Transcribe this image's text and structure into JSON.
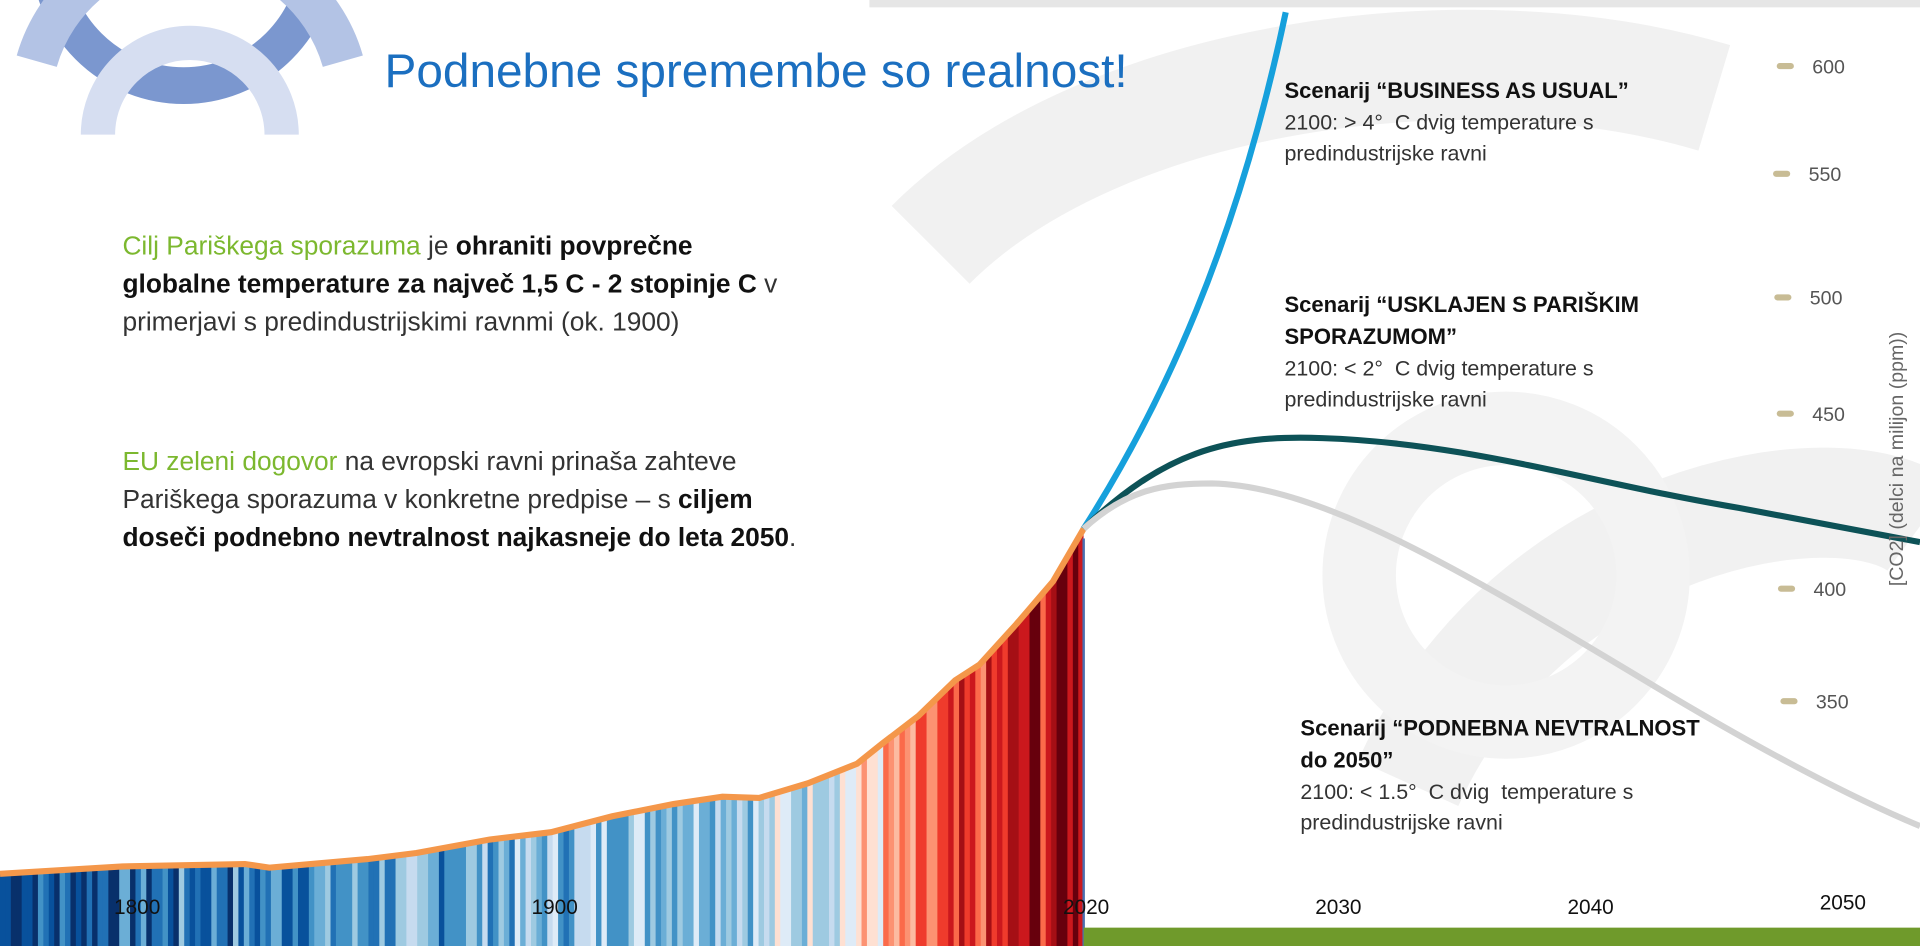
{
  "title": "Podnebne spremembe so realnost!",
  "paragraphs": [
    [
      [
        {
          "text": "Cilj Pariškega sporazuma",
          "style": "green"
        },
        {
          "text": " je ",
          "style": "normal"
        },
        {
          "text": "ohraniti povprečne",
          "style": "bold"
        }
      ],
      [
        {
          "text": "globalne temperature za največ 1,5 C - 2 stopinje C",
          "style": "bold"
        },
        {
          "text": " v",
          "style": "normal"
        }
      ],
      [
        {
          "text": "primerjavi s predindustrijskimi ravnmi (ok. 1900)",
          "style": "normal"
        }
      ]
    ],
    [
      [
        {
          "text": "EU zeleni dogovor",
          "style": "green"
        },
        {
          "text": " na evropski ravni prinaša zahteve",
          "style": "normal"
        }
      ],
      [
        {
          "text": "Pariškega sporazuma v konkretne predpise – s ",
          "style": "normal"
        },
        {
          "text": "ciljem",
          "style": "bold"
        }
      ],
      [
        {
          "text": "doseči podnebno nevtralnost najkasneje do leta 2050",
          "style": "bold"
        },
        {
          "text": ".",
          "style": "normal"
        }
      ]
    ]
  ],
  "scenarios": [
    {
      "title_lines": [
        "Scenarij “BUSINESS AS USUAL”"
      ],
      "detail_lines": [
        "2100: > 4°  C dvig temperature s",
        "predindustrijske ravni"
      ]
    },
    {
      "title_lines": [
        "Scenarij “USKLAJEN  S PARIŠKIM",
        "SPORAZUMOM”"
      ],
      "detail_lines": [
        "2100: < 2°  C dvig temperature s",
        "predindustrijske ravni"
      ]
    },
    {
      "title_lines": [
        "Scenarij “PODNEBNA NEVTRALNOST",
        "do 2050”"
      ],
      "detail_lines": [
        "2100: < 1.5°  C dvig  temperature s",
        "predindustrijske ravni"
      ]
    }
  ],
  "co2_axis": {
    "label": "[CO2] (delci na milijon (ppm))",
    "ticks": [
      600,
      550,
      500,
      450,
      400,
      350
    ]
  },
  "year_ticks": [
    1800,
    1900,
    2020,
    2030,
    2040,
    2050
  ]
}
